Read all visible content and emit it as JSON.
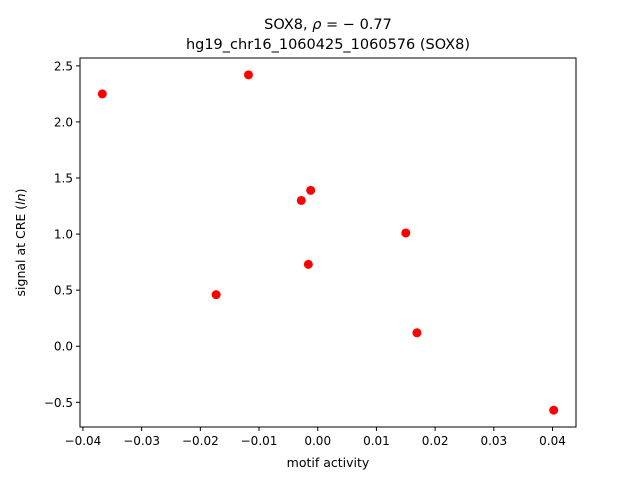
{
  "chart_data": {
    "type": "scatter",
    "title_line1_prefix": "SOX8, ",
    "title_rho_symbol": "ρ",
    "title_rho_value": " = − 0.77",
    "title_line2": "hg19_chr16_1060425_1060576 (SOX8)",
    "xlabel": "motif activity",
    "ylabel_prefix": "signal at CRE (",
    "ylabel_italic": "ln",
    "ylabel_suffix": ")",
    "xlim": [
      -0.0405,
      0.044
    ],
    "ylim": [
      -0.72,
      2.57
    ],
    "xticks": [
      -0.04,
      -0.03,
      -0.02,
      -0.01,
      0.0,
      0.01,
      0.02,
      0.03,
      0.04
    ],
    "xtick_labels": [
      "−0.04",
      "−0.03",
      "−0.02",
      "−0.01",
      "0.00",
      "0.01",
      "0.02",
      "0.03",
      "0.04"
    ],
    "yticks": [
      -0.5,
      0.0,
      0.5,
      1.0,
      1.5,
      2.0,
      2.5
    ],
    "ytick_labels": [
      "−0.5",
      "0.0",
      "0.5",
      "1.0",
      "1.5",
      "2.0",
      "2.5"
    ],
    "grid": false,
    "marker_color": "#ff0000",
    "points": [
      {
        "x": -0.0367,
        "y": 2.25
      },
      {
        "x": -0.0118,
        "y": 2.42
      },
      {
        "x": -0.0173,
        "y": 0.46
      },
      {
        "x": -0.0028,
        "y": 1.3
      },
      {
        "x": -0.0012,
        "y": 1.39
      },
      {
        "x": -0.0016,
        "y": 0.73
      },
      {
        "x": 0.015,
        "y": 1.01
      },
      {
        "x": 0.0169,
        "y": 0.12
      },
      {
        "x": 0.0402,
        "y": -0.57
      }
    ]
  }
}
